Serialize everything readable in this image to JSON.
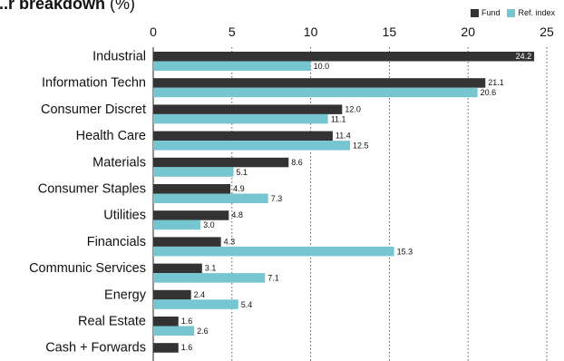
{
  "chart_data": {
    "type": "bar",
    "orientation": "horizontal",
    "title": "...r breakdown",
    "title_unit": "(%)",
    "categories": [
      "Industrial",
      "Information Techn",
      "Consumer Discret",
      "Health Care",
      "Materials",
      "Consumer Staples",
      "Utilities",
      "Financials",
      "Communic Services",
      "Energy",
      "Real Estate",
      "Cash + Forwards"
    ],
    "series": [
      {
        "name": "Fund",
        "color": "#333333",
        "values": [
          24.2,
          21.1,
          12.0,
          11.4,
          8.6,
          4.9,
          4.8,
          4.3,
          3.1,
          2.4,
          1.6,
          1.6
        ]
      },
      {
        "name": "Ref. index",
        "color": "#76c6d1",
        "values": [
          10.0,
          20.6,
          11.1,
          12.5,
          5.1,
          7.3,
          3.0,
          15.3,
          7.1,
          5.4,
          2.6,
          null
        ]
      }
    ],
    "value_labels": [
      [
        "24.2",
        "10.0"
      ],
      [
        "21.1",
        "20.6"
      ],
      [
        "12.0",
        "11.1"
      ],
      [
        "11.4",
        "12.5"
      ],
      [
        "8.6",
        "5.1"
      ],
      [
        "4.9",
        "7.3"
      ],
      [
        "4.8",
        "3.0"
      ],
      [
        "4.3",
        "15.3"
      ],
      [
        "3.1",
        "7.1"
      ],
      [
        "2.4",
        "5.4"
      ],
      [
        "1.6",
        "2.6"
      ],
      [
        "1.6",
        ""
      ]
    ],
    "xlim": [
      0,
      25
    ],
    "xticks": [
      "0",
      "5",
      "10",
      "15",
      "20",
      "25"
    ],
    "grid": true,
    "legend_position": "top-right"
  }
}
